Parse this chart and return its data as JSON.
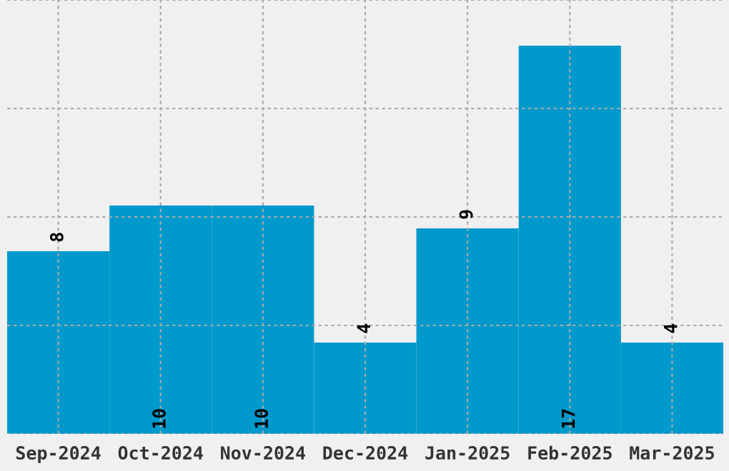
{
  "chart_data": {
    "type": "bar",
    "categories": [
      "Sep-2024",
      "Oct-2024",
      "Nov-2024",
      "Dec-2024",
      "Jan-2025",
      "Feb-2025",
      "Mar-2025"
    ],
    "values": [
      8,
      10,
      10,
      4,
      9,
      17,
      4
    ],
    "color": "#0099cc",
    "data_labels": true,
    "ylim": [
      0,
      19
    ],
    "yticks": [
      {
        "value": 0,
        "label": null
      },
      {
        "value": 4.75,
        "label": null
      },
      {
        "value": 9.5,
        "label": null
      },
      {
        "value": 14.25,
        "label": null
      },
      {
        "value": 19,
        "label": null
      }
    ],
    "tick_labels": "x",
    "grid": true
  }
}
